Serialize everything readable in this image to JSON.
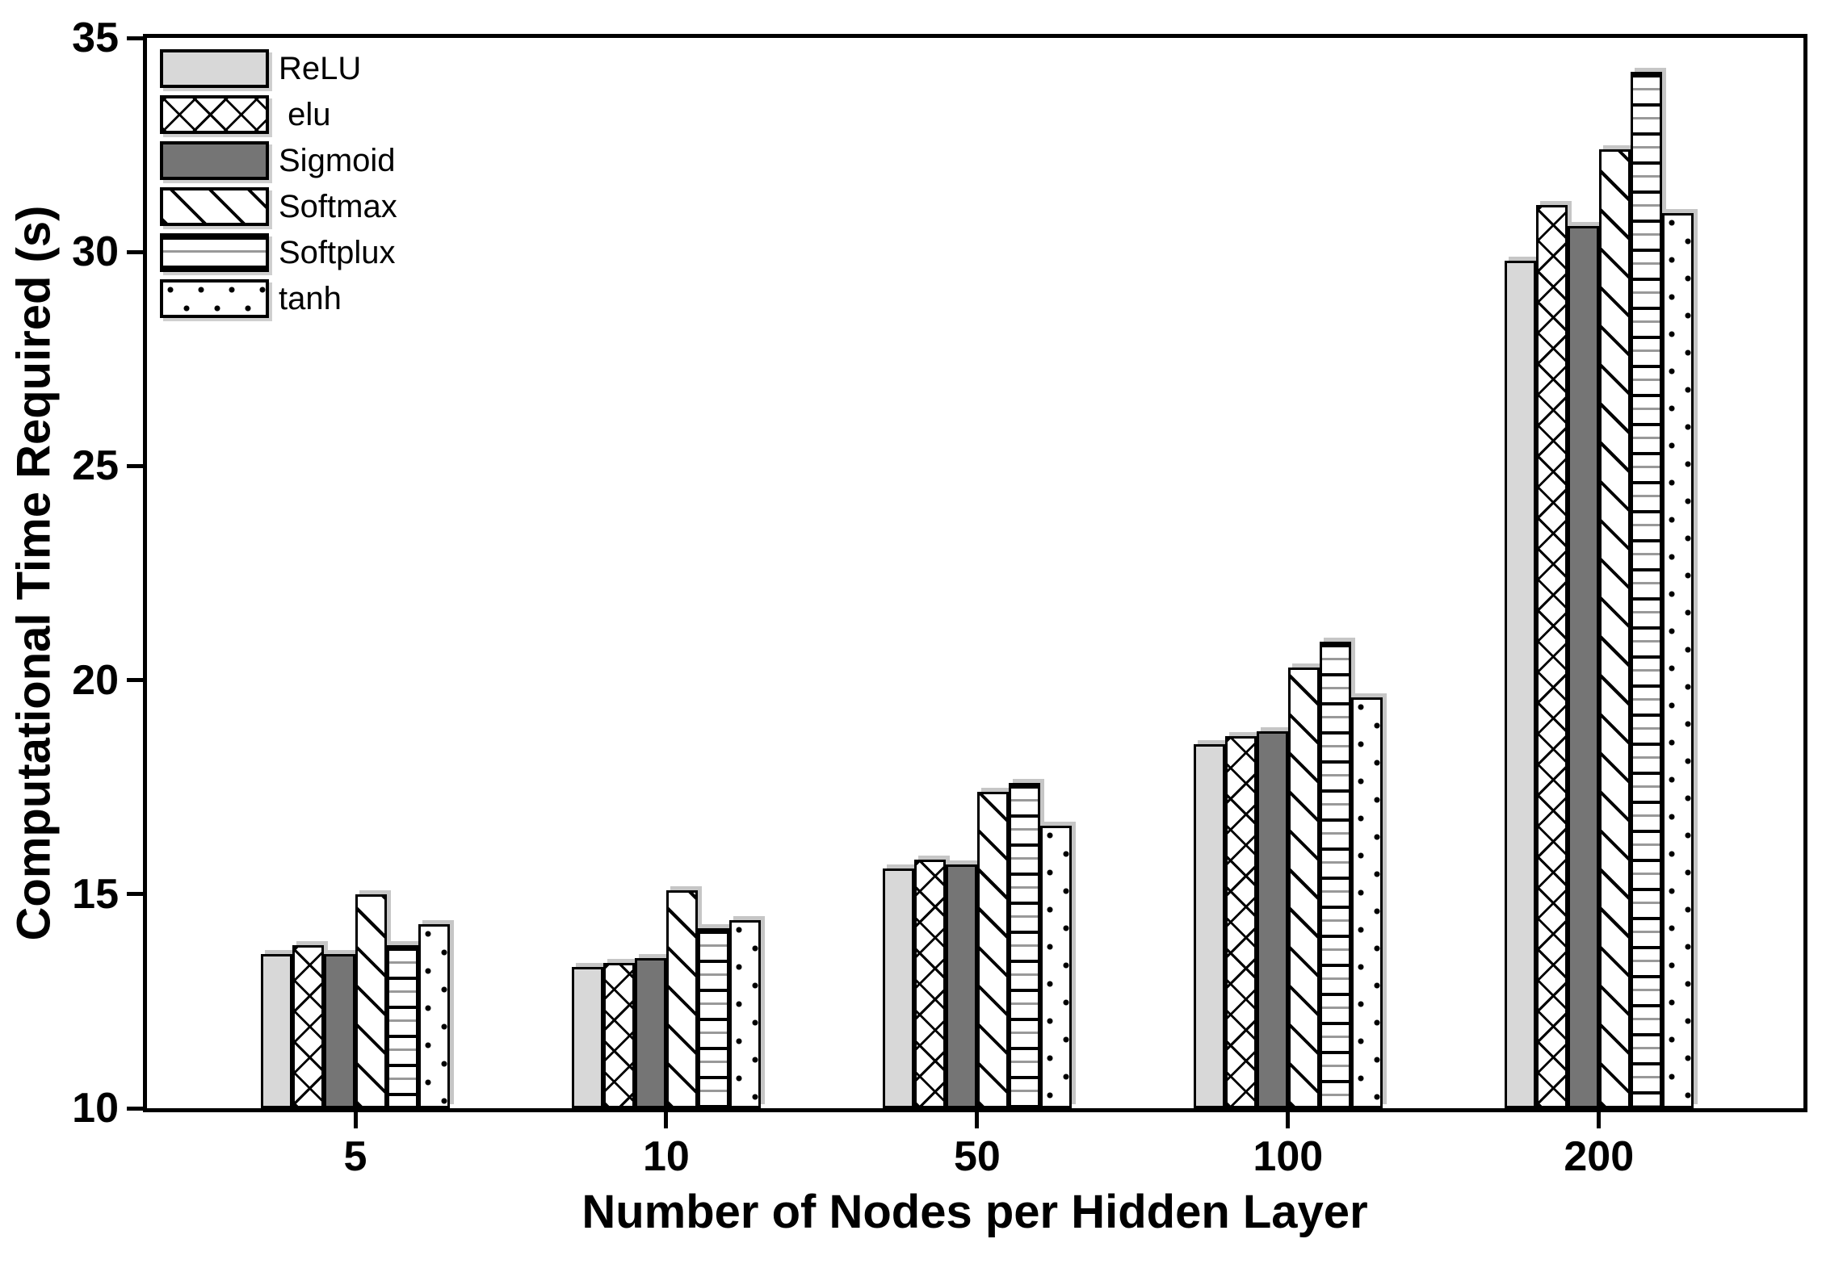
{
  "chart_data": {
    "type": "bar",
    "title": "",
    "xlabel": "Number of Nodes per Hidden Layer",
    "ylabel": "Computational Time Required (s)",
    "categories": [
      "5",
      "10",
      "50",
      "100",
      "200"
    ],
    "yticks": [
      10,
      15,
      20,
      25,
      30,
      35
    ],
    "ylim": [
      10,
      35
    ],
    "grid": false,
    "legend_position": "top-left",
    "colors": {
      "relu_fill": "#d8d8d8",
      "sigmoid_fill": "#757575",
      "hatch_ink": "#000000",
      "axis_ink": "#000000",
      "bar_shadow": "#c6c6c6",
      "background": "#ffffff"
    },
    "series": [
      {
        "name": "ReLU",
        "pattern": "solid",
        "fill": "#d8d8d8",
        "values": [
          13.6,
          13.3,
          15.6,
          18.5,
          29.8
        ]
      },
      {
        "name": " elu",
        "pattern": "crosshatch",
        "fill": "#ffffff",
        "values": [
          13.8,
          13.4,
          15.8,
          18.7,
          31.1
        ]
      },
      {
        "name": "Sigmoid",
        "pattern": "solid",
        "fill": "#757575",
        "values": [
          13.6,
          13.5,
          15.7,
          18.8,
          30.6
        ]
      },
      {
        "name": "Softmax",
        "pattern": "diagonal",
        "fill": "#ffffff",
        "values": [
          15.0,
          15.1,
          17.4,
          20.3,
          32.4
        ]
      },
      {
        "name": "Softplux",
        "pattern": "hlines",
        "fill": "#ffffff",
        "values": [
          13.8,
          14.2,
          17.6,
          20.9,
          34.2
        ]
      },
      {
        "name": "tanh",
        "pattern": "dots",
        "fill": "#ffffff",
        "values": [
          14.3,
          14.4,
          16.6,
          19.6,
          30.9
        ]
      }
    ]
  }
}
